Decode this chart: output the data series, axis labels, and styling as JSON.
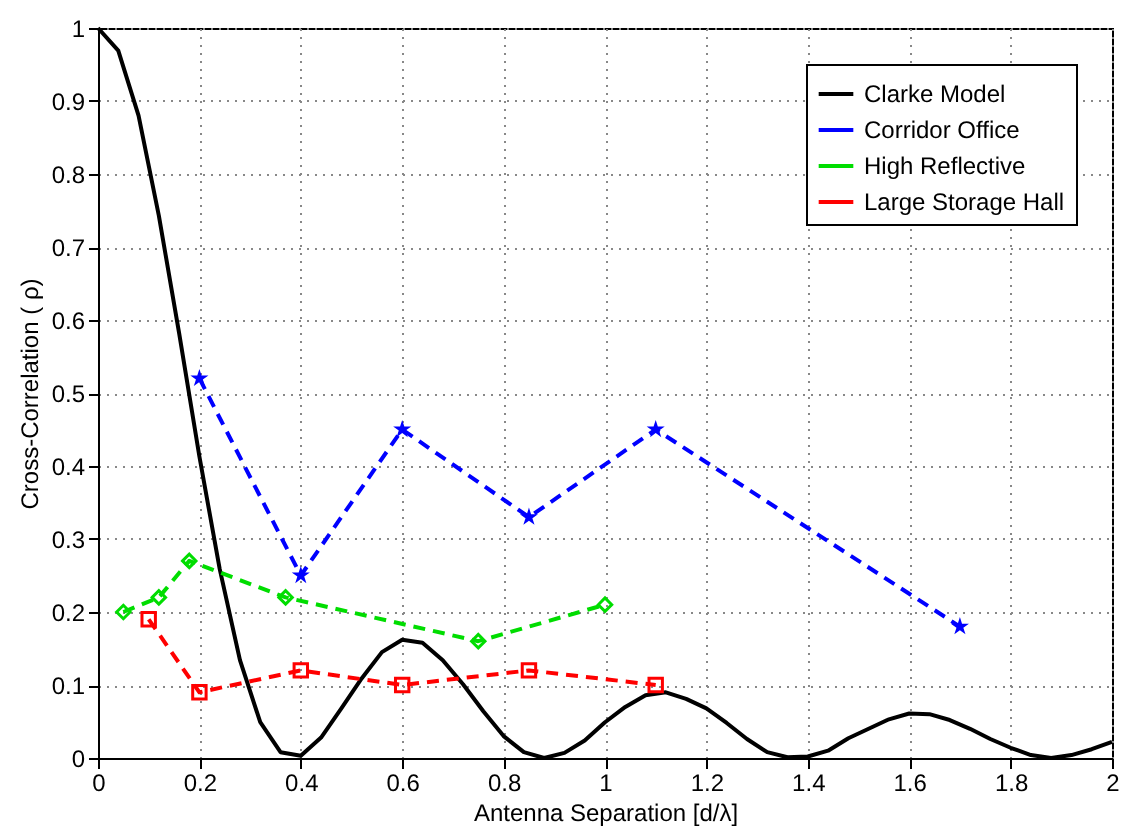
{
  "chart_data": {
    "type": "line",
    "xlabel": "Antenna Separation [d/λ]",
    "ylabel": "Cross-Correlation ( ρ)",
    "xlim": [
      0,
      2
    ],
    "xticks": [
      0,
      0.2,
      0.4,
      0.6,
      0.8,
      1,
      1.2,
      1.4,
      1.6,
      1.8,
      2
    ],
    "ylim": [
      0,
      1
    ],
    "yticks": [
      0,
      0.1,
      0.2,
      0.3,
      0.4,
      0.5,
      0.6,
      0.7,
      0.8,
      0.9,
      1
    ],
    "grid": true,
    "legend": "top right",
    "series": [
      {
        "name": "Clarke Model",
        "color": "#000000",
        "marker": "none",
        "line_style": "solid",
        "x": [
          0,
          0.04,
          0.08,
          0.12,
          0.16,
          0.2,
          0.24,
          0.28,
          0.32,
          0.36,
          0.4,
          0.44,
          0.48,
          0.52,
          0.56,
          0.6,
          0.64,
          0.68,
          0.72,
          0.76,
          0.8,
          0.84,
          0.88,
          0.92,
          0.96,
          1.0,
          1.04,
          1.08,
          1.12,
          1.16,
          1.2,
          1.24,
          1.28,
          1.32,
          1.36,
          1.4,
          1.44,
          1.48,
          1.52,
          1.56,
          1.6,
          1.64,
          1.68,
          1.72,
          1.76,
          1.8,
          1.84,
          1.88,
          1.92,
          1.96,
          2.0
        ],
        "values": [
          1,
          0.969,
          0.88,
          0.743,
          0.582,
          0.413,
          0.259,
          0.134,
          0.049,
          0.008,
          0.003,
          0.028,
          0.068,
          0.109,
          0.145,
          0.162,
          0.158,
          0.134,
          0.101,
          0.064,
          0.03,
          0.008,
          0,
          0.007,
          0.024,
          0.049,
          0.07,
          0.086,
          0.09,
          0.081,
          0.068,
          0.048,
          0.026,
          0.008,
          0.001,
          0.002,
          0.01,
          0.027,
          0.04,
          0.053,
          0.061,
          0.06,
          0.052,
          0.04,
          0.026,
          0.014,
          0.004,
          0,
          0.004,
          0.012,
          0.022
        ]
      },
      {
        "name": "Corridor Office",
        "color": "#0000ff",
        "marker": "star",
        "line_style": "dashed",
        "x": [
          0.2,
          0.4,
          0.6,
          0.85,
          1.1,
          1.7
        ],
        "values": [
          0.52,
          0.25,
          0.45,
          0.33,
          0.45,
          0.18
        ]
      },
      {
        "name": "High Reflective",
        "color": "#00dd00",
        "marker": "diamond",
        "line_style": "dashed",
        "x": [
          0.05,
          0.12,
          0.18,
          0.37,
          0.75,
          1.0
        ],
        "values": [
          0.2,
          0.22,
          0.27,
          0.22,
          0.16,
          0.21
        ]
      },
      {
        "name": "Large Storage Hall",
        "color": "#ff0000",
        "marker": "square",
        "line_style": "dashed",
        "x": [
          0.1,
          0.2,
          0.4,
          0.6,
          0.85,
          1.1
        ],
        "values": [
          0.19,
          0.09,
          0.12,
          0.1,
          0.12,
          0.1
        ]
      }
    ]
  }
}
